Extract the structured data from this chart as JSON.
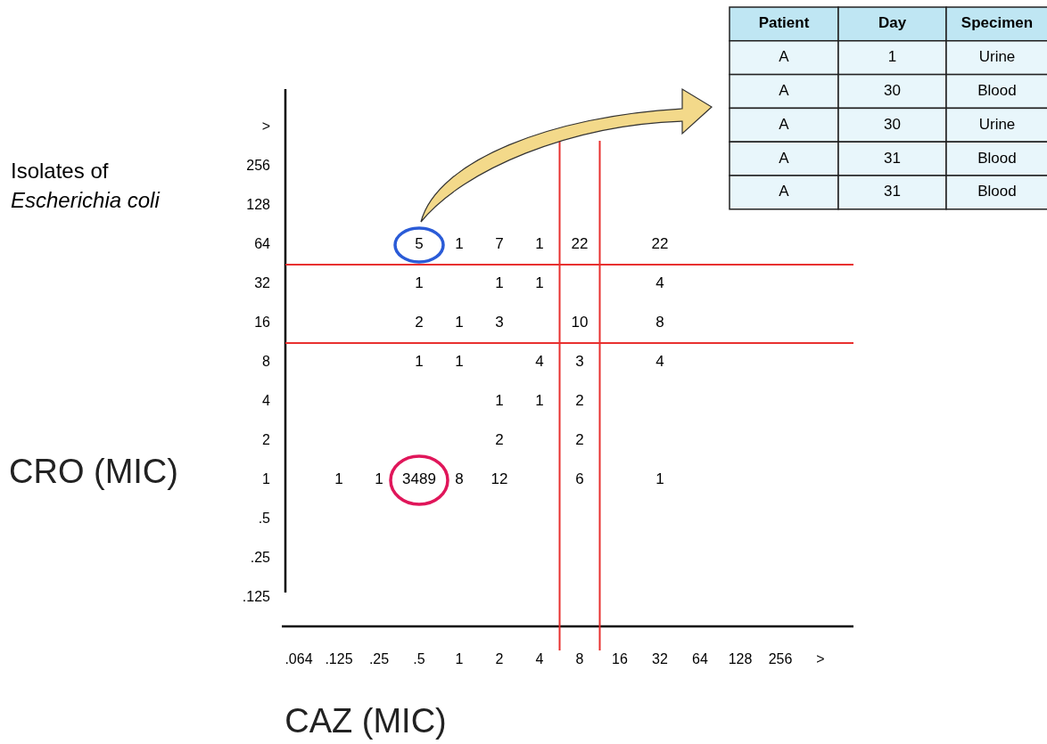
{
  "chart_data": [
    {
      "type": "heatmap",
      "title": "Isolates of Escherichia coli",
      "xlabel": "CAZ (MIC)",
      "ylabel": "CRO (MIC)",
      "data_labels": true,
      "categories": [
        ".064",
        ".125",
        ".25",
        ".5",
        "1",
        "2",
        "4",
        "8",
        "16",
        "32",
        "64",
        "128",
        "256",
        ">"
      ],
      "y_categories": [
        ">",
        "256",
        "128",
        "64",
        "32",
        "16",
        "8",
        "4",
        "2",
        "1",
        ".5",
        ".25",
        ".125"
      ],
      "cells": [
        [
          null,
          null,
          null,
          null,
          null,
          null,
          null,
          null,
          null,
          null,
          null,
          null,
          null,
          null
        ],
        [
          null,
          null,
          null,
          null,
          null,
          null,
          null,
          null,
          null,
          null,
          null,
          null,
          null,
          null
        ],
        [
          null,
          null,
          null,
          null,
          null,
          null,
          null,
          null,
          null,
          null,
          null,
          null,
          null,
          null
        ],
        [
          null,
          null,
          null,
          5,
          1,
          7,
          1,
          22,
          null,
          22,
          null,
          null,
          null,
          null
        ],
        [
          null,
          null,
          null,
          1,
          null,
          1,
          1,
          null,
          null,
          4,
          null,
          null,
          null,
          null
        ],
        [
          null,
          null,
          null,
          2,
          1,
          3,
          null,
          10,
          null,
          8,
          null,
          null,
          null,
          null
        ],
        [
          null,
          null,
          null,
          1,
          1,
          null,
          4,
          3,
          null,
          4,
          null,
          null,
          null,
          null
        ],
        [
          null,
          null,
          null,
          null,
          null,
          1,
          1,
          2,
          null,
          null,
          null,
          null,
          null,
          null
        ],
        [
          null,
          null,
          null,
          null,
          null,
          2,
          null,
          2,
          null,
          null,
          null,
          null,
          null,
          null
        ],
        [
          null,
          1,
          1,
          3489,
          8,
          12,
          null,
          6,
          null,
          1,
          null,
          null,
          null,
          null
        ],
        [
          null,
          null,
          null,
          null,
          null,
          null,
          null,
          null,
          null,
          null,
          null,
          null,
          null,
          null
        ],
        [
          null,
          null,
          null,
          null,
          null,
          null,
          null,
          null,
          null,
          null,
          null,
          null,
          null,
          null
        ],
        [
          null,
          null,
          null,
          null,
          null,
          null,
          null,
          null,
          null,
          null,
          null,
          null,
          null,
          null
        ]
      ]
    },
    {
      "type": "other",
      "categories": [
        "Patient",
        "Day",
        "Specimen"
      ],
      "cell_labels": [
        [
          "A",
          "1",
          "Urine"
        ],
        [
          "A",
          "30",
          "Blood"
        ],
        [
          "A",
          "30",
          "Urine"
        ],
        [
          "A",
          "31",
          "Blood"
        ],
        [
          "A",
          "31",
          "Blood"
        ]
      ]
    }
  ]
}
